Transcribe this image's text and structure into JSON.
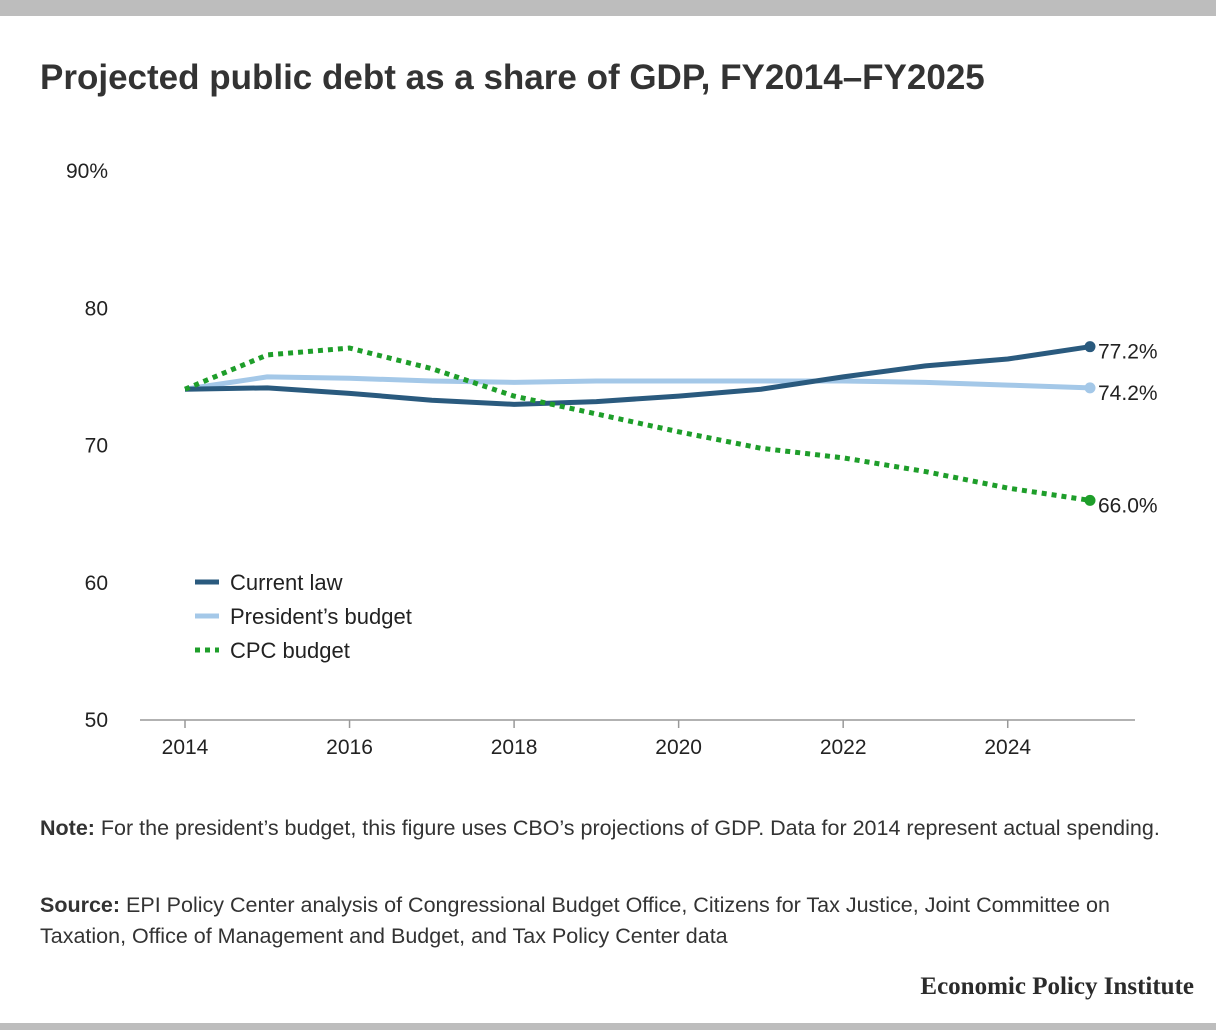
{
  "title": "Projected public debt as a share of GDP, FY2014–FY2025",
  "colors": {
    "current_law": "#2a5a7e",
    "presidents_budget": "#a4c8e8",
    "cpc_budget": "#1e9e2a",
    "axis": "#999999",
    "frame_bar": "#bdbdbd"
  },
  "chart_data": {
    "type": "line",
    "x": [
      2014,
      2015,
      2016,
      2017,
      2018,
      2019,
      2020,
      2021,
      2022,
      2023,
      2024,
      2025
    ],
    "series": [
      {
        "name": "Current law",
        "values": [
          74.1,
          74.2,
          73.8,
          73.3,
          73.0,
          73.2,
          73.6,
          74.1,
          75.0,
          75.8,
          76.3,
          77.2
        ],
        "style": "solid",
        "end_label": "77.2%"
      },
      {
        "name": "President’s budget",
        "values": [
          74.1,
          75.0,
          74.9,
          74.7,
          74.6,
          74.7,
          74.7,
          74.7,
          74.7,
          74.6,
          74.4,
          74.2
        ],
        "style": "solid",
        "end_label": "74.2%"
      },
      {
        "name": "CPC budget",
        "values": [
          74.1,
          76.6,
          77.1,
          75.6,
          73.6,
          72.3,
          71.0,
          69.8,
          69.1,
          68.1,
          66.9,
          66.0
        ],
        "style": "dotted",
        "end_label": "66.0%"
      }
    ],
    "ylim": [
      50,
      90
    ],
    "xlim": [
      2014,
      2025
    ],
    "y_ticks": [
      50,
      60,
      70,
      80,
      90
    ],
    "y_tick_labels": [
      "50",
      "60",
      "70",
      "80",
      "90%"
    ],
    "x_ticks": [
      2014,
      2016,
      2018,
      2020,
      2022,
      2024
    ],
    "x_tick_labels": [
      "2014",
      "2016",
      "2018",
      "2020",
      "2022",
      "2024"
    ],
    "legend_position": "lower-left",
    "grid": false
  },
  "note": {
    "label": "Note:",
    "text": " For the president’s budget, this figure uses CBO’s projections of GDP. Data for 2014 represent actual spending."
  },
  "source": {
    "label": "Source:",
    "text": " EPI Policy Center analysis of Congressional Budget Office, Citizens for Tax Justice, Joint Committee on Taxation, Office of Management and Budget, and Tax Policy Center data"
  },
  "brand": "Economic Policy Institute"
}
